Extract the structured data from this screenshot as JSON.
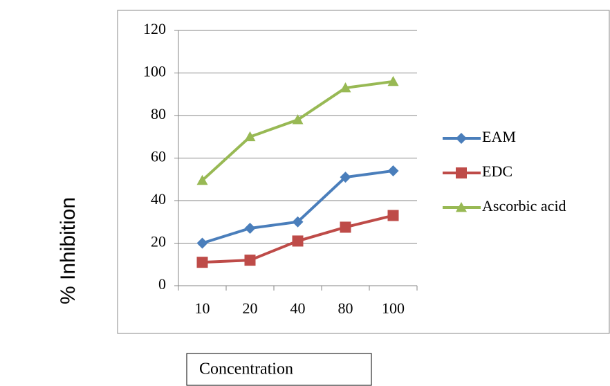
{
  "chart_data": {
    "type": "line",
    "categories": [
      "10",
      "20",
      "40",
      "80",
      "100"
    ],
    "series": [
      {
        "name": "EAM",
        "color": "#4a7ebb",
        "marker": "diamond",
        "values": [
          20,
          27,
          30,
          51,
          54
        ]
      },
      {
        "name": "EDC",
        "color": "#be4b48",
        "marker": "square",
        "values": [
          11,
          12,
          21,
          27.5,
          33
        ]
      },
      {
        "name": "Ascorbic acid",
        "color": "#98b954",
        "marker": "triangle",
        "values": [
          49.5,
          70,
          78,
          93,
          96
        ]
      }
    ],
    "ylim": [
      0,
      120
    ],
    "yticks": [
      0,
      20,
      40,
      60,
      80,
      100,
      120
    ],
    "grid": true,
    "xlabel": "Concentration",
    "ylabel": "% Inhibition",
    "legend": "right"
  }
}
